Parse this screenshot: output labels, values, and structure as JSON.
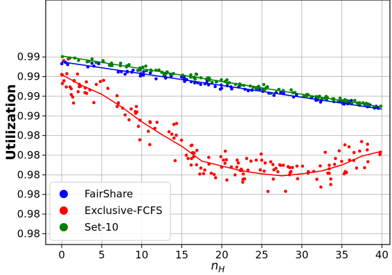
{
  "chart_data": {
    "type": "scatter",
    "title": "",
    "xlabel": "n_H",
    "ylabel": "Utilization",
    "xlim": [
      -2,
      41
    ],
    "ylim": [
      0.9745,
      0.9994
    ],
    "grid": true,
    "legend_position": "bottom-left",
    "x_ticks": [
      0,
      5,
      10,
      15,
      20,
      25,
      30,
      35,
      40
    ],
    "x_tick_labels": [
      "0",
      "5",
      "10",
      "15",
      "20",
      "25",
      "30",
      "35",
      "40"
    ],
    "y_ticks": [
      0.9755,
      0.9775,
      0.9795,
      0.9815,
      0.9835,
      0.9855,
      0.9875,
      0.9895,
      0.9915,
      0.9935,
      0.9955,
      0.9975,
      0.9995
    ],
    "y_tick_labels": [
      "0.98",
      "0.98",
      "0.98",
      "0.98",
      "0.98",
      "0.98",
      "0.99",
      "0.99",
      "0.99",
      "0.99"
    ],
    "y_tick_values": [
      0.9756,
      0.9776,
      0.9796,
      0.9816,
      0.9836,
      0.9856,
      0.9876,
      0.9896,
      0.9916,
      0.9936
    ],
    "series": [
      {
        "name": "FairShare",
        "color": "#0000ff",
        "trend": [
          [
            0,
            0.9931
          ],
          [
            40,
            0.9883
          ]
        ],
        "spread": 0.0004,
        "points": 80
      },
      {
        "name": "Exclusive-FCFS",
        "color": "#ff0000",
        "trend": [
          [
            0,
            0.9918
          ],
          [
            2.5,
            0.9907
          ],
          [
            5,
            0.9898
          ],
          [
            7.5,
            0.9885
          ],
          [
            10,
            0.987
          ],
          [
            12.5,
            0.9857
          ],
          [
            15,
            0.9845
          ],
          [
            17.5,
            0.983
          ],
          [
            20,
            0.9825
          ],
          [
            22.5,
            0.982
          ],
          [
            25,
            0.9817
          ],
          [
            27.5,
            0.9815
          ],
          [
            30,
            0.9817
          ],
          [
            32.5,
            0.982
          ],
          [
            35,
            0.9826
          ],
          [
            37.5,
            0.9835
          ],
          [
            40,
            0.984
          ]
        ],
        "spread": 0.0017,
        "points": 160
      },
      {
        "name": "Set-10",
        "color": "#008000",
        "trend": [
          [
            0,
            0.9937
          ],
          [
            40,
            0.9885
          ]
        ],
        "spread": 0.0003,
        "points": 120
      }
    ]
  }
}
